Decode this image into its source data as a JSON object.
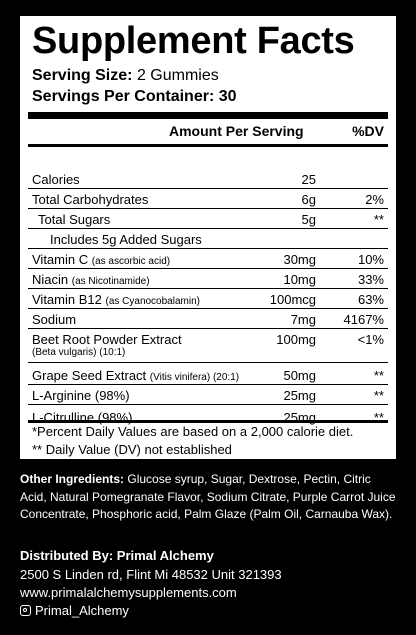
{
  "title": "Supplement Facts",
  "serving_size": {
    "label": "Serving Size:",
    "value": "2 Gummies"
  },
  "servings_per_container": {
    "label": "Servings Per Container:",
    "value": "30"
  },
  "header": {
    "amount": "Amount Per Serving",
    "dv": "%DV"
  },
  "rows": [
    {
      "label": "Calories",
      "sub": "",
      "amount": "25",
      "dv": ""
    },
    {
      "label": "Total Carbohydrates",
      "sub": "",
      "amount": "6g",
      "dv": "2%"
    },
    {
      "label": "Total Sugars",
      "sub": "",
      "amount": "5g",
      "dv": "**"
    },
    {
      "label": "Includes 5g Added Sugars",
      "sub": "",
      "amount": "",
      "dv": ""
    },
    {
      "label": "Vitamin C",
      "sub": "(as ascorbic acid)",
      "amount": "30mg",
      "dv": "10%"
    },
    {
      "label": "Niacin",
      "sub": "(as Nicotinamide)",
      "amount": "10mg",
      "dv": "33%"
    },
    {
      "label": "Vitamin B12",
      "sub": "(as Cyanocobalamin)",
      "amount": "100mcg",
      "dv": "63%"
    },
    {
      "label": "Sodium",
      "sub": "",
      "amount": "7mg",
      "dv": "4167%"
    },
    {
      "label": "Beet Root Powder Extract",
      "sub": "(Beta vulgaris) (10:1)",
      "amount": "100mg",
      "dv": "<1%"
    },
    {
      "label": "Grape Seed Extract",
      "sub": "(Vitis vinifera) (20:1)",
      "amount": "50mg",
      "dv": "**"
    },
    {
      "label": "L-Arginine (98%)",
      "sub": "",
      "amount": "25mg",
      "dv": "**"
    },
    {
      "label": "L-Citrulline (98%)",
      "sub": "",
      "amount": "25mg",
      "dv": "**"
    }
  ],
  "footnotes": [
    "*Percent Daily Values are based on a 2,000 calorie diet.",
    "** Daily Value (DV) not established"
  ],
  "other_ingredients": {
    "label": "Other Ingredients:",
    "text": "Glucose syrup, Sugar, Dextrose, Pectin, Citric Acid, Natural Pomegranate Flavor, Sodium Citrate, Purple Carrot Juice Concentrate, Phosphoric acid, Palm Glaze (Palm Oil, Carnauba Wax)."
  },
  "distributor": {
    "label": "Distributed By: Primal Alchemy",
    "address": "2500 S Linden rd, Flint Mi 48532 Unit 321393",
    "website": "www.primalalchemysupplements.com",
    "social_icon": "instagram-icon",
    "social": "Primal_Alchemy"
  }
}
